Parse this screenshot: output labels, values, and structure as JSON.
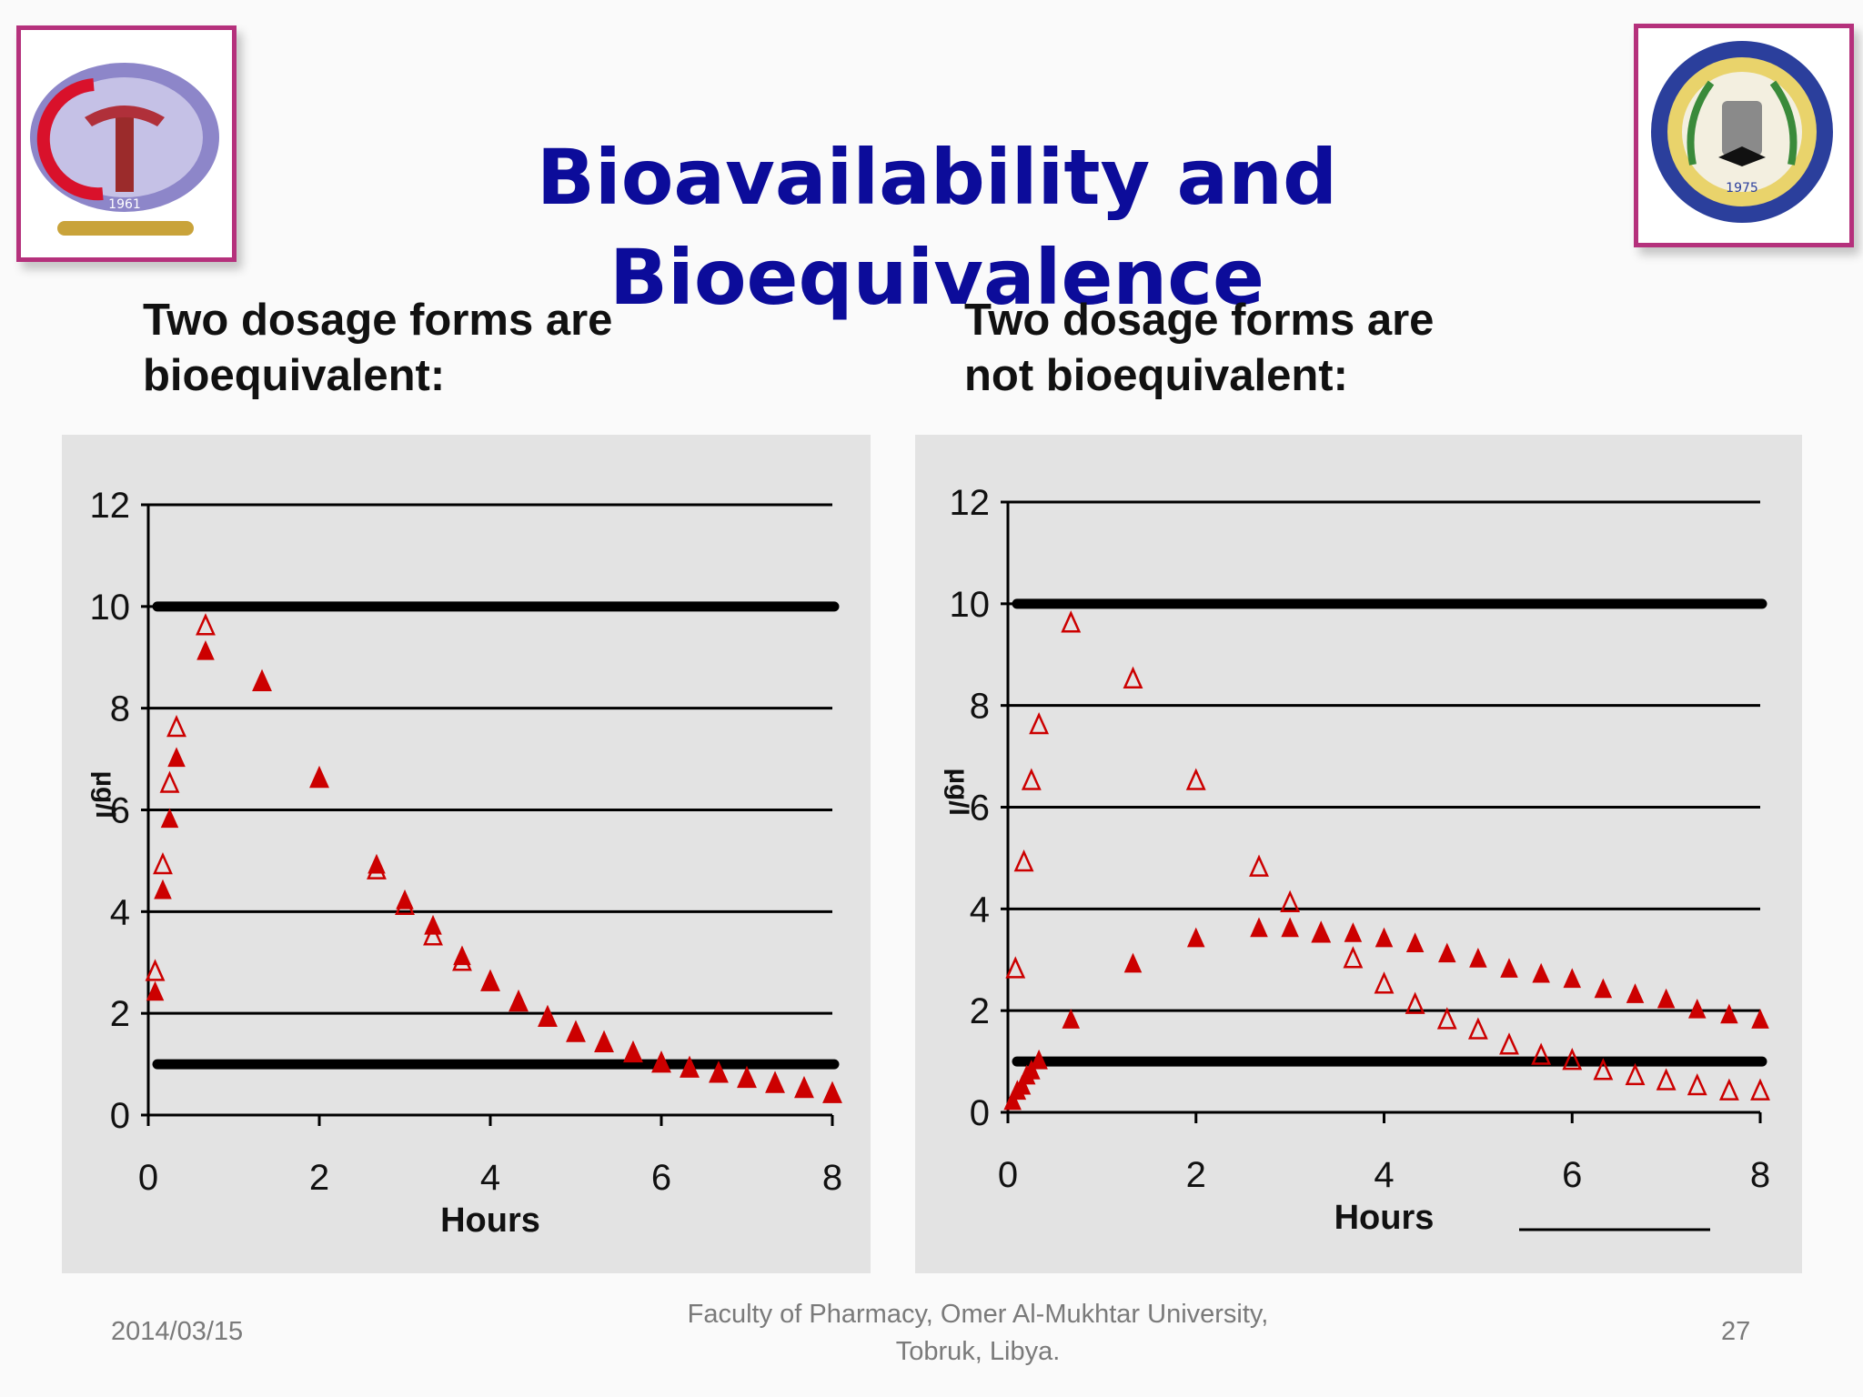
{
  "title": "Bioavailability and Bioequivalence",
  "logos": {
    "left": {
      "icon": "faculty-pharmacy-logo",
      "seal_text": "1961"
    },
    "right": {
      "icon": "omer-al-mukhtar-university-seal",
      "seal_text": "1975"
    }
  },
  "colors": {
    "title": "#0c0c9a",
    "frame": "#b5317c",
    "marker": "#cc0000",
    "band": "#000000"
  },
  "panels": {
    "left": {
      "heading_line1": "Two dosage forms are",
      "heading_line2": "bioequivalent:"
    },
    "right": {
      "heading_line1": "Two dosage forms are",
      "heading_line2": "not bioequivalent:"
    }
  },
  "chart_data": [
    {
      "type": "scatter",
      "xlabel": "Hours",
      "ylabel": "µg/l",
      "xlim": [
        0,
        8
      ],
      "ylim": [
        0,
        12
      ],
      "xticks": [
        0,
        2,
        4,
        6,
        8
      ],
      "yticks": [
        0,
        2,
        4,
        6,
        8,
        10,
        12
      ],
      "grid": true,
      "reference_lines": [
        10,
        1
      ],
      "series": [
        {
          "marker": "open-triangle",
          "x": [
            0.08,
            0.17,
            0.25,
            0.33,
            0.67,
            1.33,
            2.0,
            2.67,
            3.0,
            3.33,
            3.67,
            4.0,
            4.33,
            4.67,
            5.0,
            5.33,
            5.67,
            6.0,
            6.33,
            6.67,
            7.0,
            7.33,
            7.67,
            8.0
          ],
          "y": [
            2.8,
            4.9,
            6.5,
            7.6,
            9.6,
            8.5,
            6.6,
            4.8,
            4.1,
            3.5,
            3.0,
            2.6,
            2.2,
            1.9,
            1.6,
            1.4,
            1.2,
            1.0,
            0.9,
            0.8,
            0.7,
            0.6,
            0.5,
            0.4
          ]
        },
        {
          "marker": "filled-triangle",
          "x": [
            0.08,
            0.17,
            0.25,
            0.33,
            0.67,
            1.33,
            2.0,
            2.67,
            3.0,
            3.33,
            3.67,
            4.0,
            4.33,
            4.67,
            5.0,
            5.33,
            5.67,
            6.0,
            6.33,
            6.67,
            7.0,
            7.33,
            7.67,
            8.0
          ],
          "y": [
            2.4,
            4.4,
            5.8,
            7.0,
            9.1,
            8.5,
            6.6,
            4.9,
            4.2,
            3.7,
            3.1,
            2.6,
            2.2,
            1.9,
            1.6,
            1.4,
            1.2,
            1.0,
            0.9,
            0.8,
            0.7,
            0.6,
            0.5,
            0.4
          ]
        }
      ]
    },
    {
      "type": "scatter",
      "xlabel": "Hours",
      "ylabel": "µg/l",
      "xlim": [
        0,
        8
      ],
      "ylim": [
        0,
        12
      ],
      "xticks": [
        0,
        2,
        4,
        6,
        8
      ],
      "yticks": [
        0,
        2,
        4,
        6,
        8,
        10,
        12
      ],
      "grid": true,
      "reference_lines": [
        10,
        1
      ],
      "series": [
        {
          "marker": "open-triangle",
          "x": [
            0.08,
            0.17,
            0.25,
            0.33,
            0.67,
            1.33,
            2.0,
            2.67,
            3.0,
            3.33,
            3.67,
            4.0,
            4.33,
            4.67,
            5.0,
            5.33,
            5.67,
            6.0,
            6.33,
            6.67,
            7.0,
            7.33,
            7.67,
            8.0
          ],
          "y": [
            2.8,
            4.9,
            6.5,
            7.6,
            9.6,
            8.5,
            6.5,
            4.8,
            4.1,
            3.5,
            3.0,
            2.5,
            2.1,
            1.8,
            1.6,
            1.3,
            1.1,
            1.0,
            0.8,
            0.7,
            0.6,
            0.5,
            0.4,
            0.4
          ]
        },
        {
          "marker": "filled-triangle",
          "x": [
            0.05,
            0.1,
            0.15,
            0.2,
            0.25,
            0.33,
            0.67,
            1.33,
            2.0,
            2.67,
            3.0,
            3.33,
            3.67,
            4.0,
            4.33,
            4.67,
            5.0,
            5.33,
            5.67,
            6.0,
            6.33,
            6.67,
            7.0,
            7.33,
            7.67,
            8.0
          ],
          "y": [
            0.2,
            0.4,
            0.5,
            0.7,
            0.8,
            1.0,
            1.8,
            2.9,
            3.4,
            3.6,
            3.6,
            3.5,
            3.5,
            3.4,
            3.3,
            3.1,
            3.0,
            2.8,
            2.7,
            2.6,
            2.4,
            2.3,
            2.2,
            2.0,
            1.9,
            1.8
          ]
        }
      ]
    }
  ],
  "footer": {
    "date": "2014/03/15",
    "org_line1": "Faculty of Pharmacy, Omer Al-Mukhtar University,",
    "org_line2": "Tobruk, Libya.",
    "page": "27"
  }
}
